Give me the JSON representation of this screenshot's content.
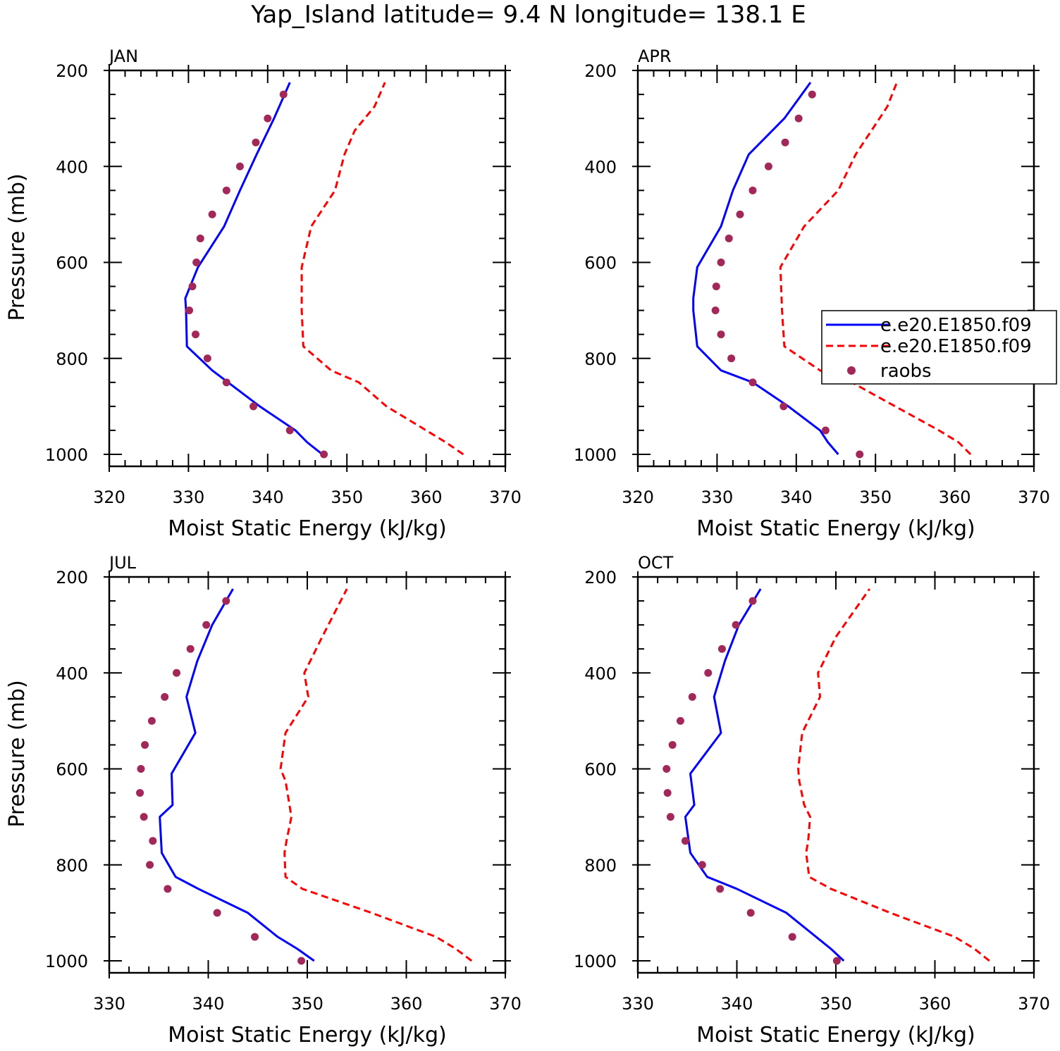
{
  "figure_title": "Yap_Island  latitude= 9.4 N longitude= 138.1 E",
  "colors": {
    "model1": "#0000ff",
    "model2": "#ff0000",
    "raobs": "#a3285a",
    "axis": "#000000"
  },
  "legend": {
    "entries": [
      {
        "label": "e.e20.E1850.f09",
        "style": "solid",
        "color": "#0000ff"
      },
      {
        "label": "e.e20.E1850.f09",
        "style": "dashed",
        "color": "#ff0000"
      },
      {
        "label": "raobs",
        "style": "marker",
        "color": "#a3285a"
      }
    ]
  },
  "chart_data": [
    {
      "type": "line",
      "panel": "JAN",
      "xlabel": "Moist Static Energy (kJ/kg)",
      "ylabel": "Pressure (mb)",
      "xlim": [
        320,
        370
      ],
      "ylim": [
        1000,
        200
      ],
      "xticks": [
        320,
        330,
        340,
        350,
        360,
        370
      ],
      "yticks": [
        200,
        400,
        600,
        800,
        1000
      ],
      "series": [
        {
          "name": "e.e20.E1850.f09",
          "style": "solid",
          "color": "#0000ff",
          "x": [
            346.9,
            345.0,
            343.5,
            339.0,
            335.0,
            333.0,
            329.8,
            329.7,
            329.6,
            331.2,
            334.5,
            336.5,
            338.6,
            340.8,
            342.8
          ],
          "y": [
            1000,
            975,
            950,
            900,
            850,
            825,
            775,
            700,
            675,
            610,
            525,
            450,
            375,
            300,
            225
          ]
        },
        {
          "name": "e.e20.E1850.f09",
          "style": "dashed",
          "color": "#ff0000",
          "x": [
            364.7,
            362.5,
            360.0,
            355.0,
            351.5,
            348.0,
            344.5,
            344.3,
            344.3,
            345.5,
            348.5,
            349.7,
            351.0,
            353.5,
            354.8
          ],
          "y": [
            1000,
            975,
            950,
            900,
            850,
            825,
            775,
            700,
            610,
            525,
            450,
            375,
            325,
            275,
            225
          ]
        },
        {
          "name": "raobs",
          "style": "marker",
          "color": "#a3285a",
          "x": [
            347.1,
            342.8,
            338.2,
            334.8,
            332.4,
            330.9,
            330.1,
            330.5,
            331.0,
            331.5,
            333.0,
            334.8,
            336.5,
            338.5,
            340.0,
            342.0
          ],
          "y": [
            1000,
            950,
            900,
            850,
            800,
            750,
            700,
            650,
            600,
            550,
            500,
            450,
            400,
            350,
            300,
            250
          ]
        }
      ]
    },
    {
      "type": "line",
      "panel": "APR",
      "xlabel": "Moist Static Energy (kJ/kg)",
      "ylabel": "",
      "xlim": [
        320,
        370
      ],
      "ylim": [
        1000,
        200
      ],
      "xticks": [
        320,
        330,
        340,
        350,
        360,
        370
      ],
      "yticks": [
        200,
        400,
        600,
        800,
        1000
      ],
      "series": [
        {
          "name": "e.e20.E1850.f09",
          "style": "solid",
          "color": "#0000ff",
          "x": [
            345.3,
            344.0,
            343.0,
            339.0,
            334.5,
            330.5,
            327.5,
            327.0,
            327.0,
            327.5,
            330.5,
            332.0,
            334.0,
            338.5,
            341.8
          ],
          "y": [
            1000,
            975,
            950,
            900,
            850,
            825,
            775,
            700,
            675,
            610,
            525,
            450,
            375,
            300,
            225
          ]
        },
        {
          "name": "e.e20.E1850.f09",
          "style": "dashed",
          "color": "#ff0000",
          "x": [
            362.0,
            360.5,
            358.0,
            352.5,
            347.0,
            343.0,
            338.5,
            338.2,
            338.0,
            341.0,
            345.3,
            347.5,
            349.5,
            351.5,
            352.7
          ],
          "y": [
            1000,
            975,
            950,
            900,
            850,
            825,
            775,
            700,
            610,
            525,
            450,
            375,
            325,
            275,
            225
          ]
        },
        {
          "name": "raobs",
          "style": "marker",
          "color": "#a3285a",
          "x": [
            348.0,
            343.7,
            338.4,
            334.5,
            331.8,
            330.5,
            329.8,
            329.9,
            330.5,
            331.5,
            332.9,
            334.5,
            336.5,
            338.6,
            340.3,
            342.0
          ],
          "y": [
            1000,
            950,
            900,
            850,
            800,
            750,
            700,
            650,
            600,
            550,
            500,
            450,
            400,
            350,
            300,
            250
          ]
        }
      ]
    },
    {
      "type": "line",
      "panel": "JUL",
      "xlabel": "Moist Static Energy (kJ/kg)",
      "ylabel": "Pressure (mb)",
      "xlim": [
        330,
        370
      ],
      "ylim": [
        1000,
        200
      ],
      "xticks": [
        330,
        340,
        350,
        360,
        370
      ],
      "yticks": [
        200,
        400,
        600,
        800,
        1000
      ],
      "series": [
        {
          "name": "e.e20.E1850.f09",
          "style": "solid",
          "color": "#0000ff",
          "x": [
            350.7,
            349.0,
            347.0,
            344.0,
            339.0,
            336.7,
            335.3,
            335.1,
            336.4,
            336.3,
            338.7,
            337.8,
            338.9,
            340.4,
            342.5
          ],
          "y": [
            1000,
            975,
            950,
            900,
            850,
            825,
            775,
            700,
            675,
            610,
            525,
            450,
            375,
            300,
            225
          ]
        },
        {
          "name": "e.e20.E1850.f09",
          "style": "dashed",
          "color": "#ff0000",
          "x": [
            366.6,
            365.0,
            363.0,
            356.5,
            349.5,
            347.8,
            347.7,
            347.9,
            348.4,
            348.2,
            347.8,
            347.3,
            347.8,
            350.1,
            349.7,
            351.5,
            354.0
          ],
          "y": [
            1000,
            975,
            950,
            900,
            850,
            825,
            775,
            750,
            700,
            675,
            625,
            600,
            525,
            450,
            400,
            325,
            225
          ]
        },
        {
          "name": "raobs",
          "style": "marker",
          "color": "#a3285a",
          "x": [
            349.4,
            344.7,
            340.9,
            335.9,
            334.1,
            334.4,
            333.5,
            333.1,
            333.2,
            333.6,
            334.3,
            335.6,
            336.8,
            338.2,
            339.8,
            341.8
          ],
          "y": [
            1000,
            950,
            900,
            850,
            800,
            750,
            700,
            650,
            600,
            550,
            500,
            450,
            400,
            350,
            300,
            250
          ]
        }
      ]
    },
    {
      "type": "line",
      "panel": "OCT",
      "xlabel": "Moist Static Energy (kJ/kg)",
      "ylabel": "",
      "xlim": [
        330,
        370
      ],
      "ylim": [
        1000,
        200
      ],
      "xticks": [
        330,
        340,
        350,
        360,
        370
      ],
      "yticks": [
        200,
        400,
        600,
        800,
        1000
      ],
      "series": [
        {
          "name": "e.e20.E1850.f09",
          "style": "solid",
          "color": "#0000ff",
          "x": [
            350.8,
            349.5,
            348.0,
            345.0,
            340.0,
            337.0,
            335.3,
            334.8,
            335.7,
            335.3,
            338.4,
            337.7,
            338.8,
            340.2,
            342.4
          ],
          "y": [
            1000,
            975,
            950,
            900,
            850,
            825,
            775,
            700,
            675,
            610,
            525,
            450,
            375,
            300,
            225
          ]
        },
        {
          "name": "e.e20.E1850.f09",
          "style": "dashed",
          "color": "#ff0000",
          "x": [
            365.5,
            364.0,
            362.0,
            355.5,
            349.5,
            347.3,
            347.0,
            347.2,
            347.4,
            346.8,
            346.3,
            346.2,
            346.6,
            348.4,
            348.2,
            350.0,
            353.4
          ],
          "y": [
            1000,
            975,
            950,
            900,
            850,
            825,
            775,
            750,
            700,
            675,
            625,
            600,
            525,
            450,
            400,
            325,
            225
          ]
        },
        {
          "name": "raobs",
          "style": "marker",
          "color": "#a3285a",
          "x": [
            350.1,
            345.6,
            341.4,
            338.3,
            336.5,
            334.8,
            333.3,
            333.0,
            332.9,
            333.5,
            334.3,
            335.5,
            337.1,
            338.5,
            339.9,
            341.6
          ],
          "y": [
            1000,
            950,
            900,
            850,
            800,
            750,
            700,
            650,
            600,
            550,
            500,
            450,
            400,
            350,
            300,
            250
          ]
        }
      ]
    }
  ]
}
